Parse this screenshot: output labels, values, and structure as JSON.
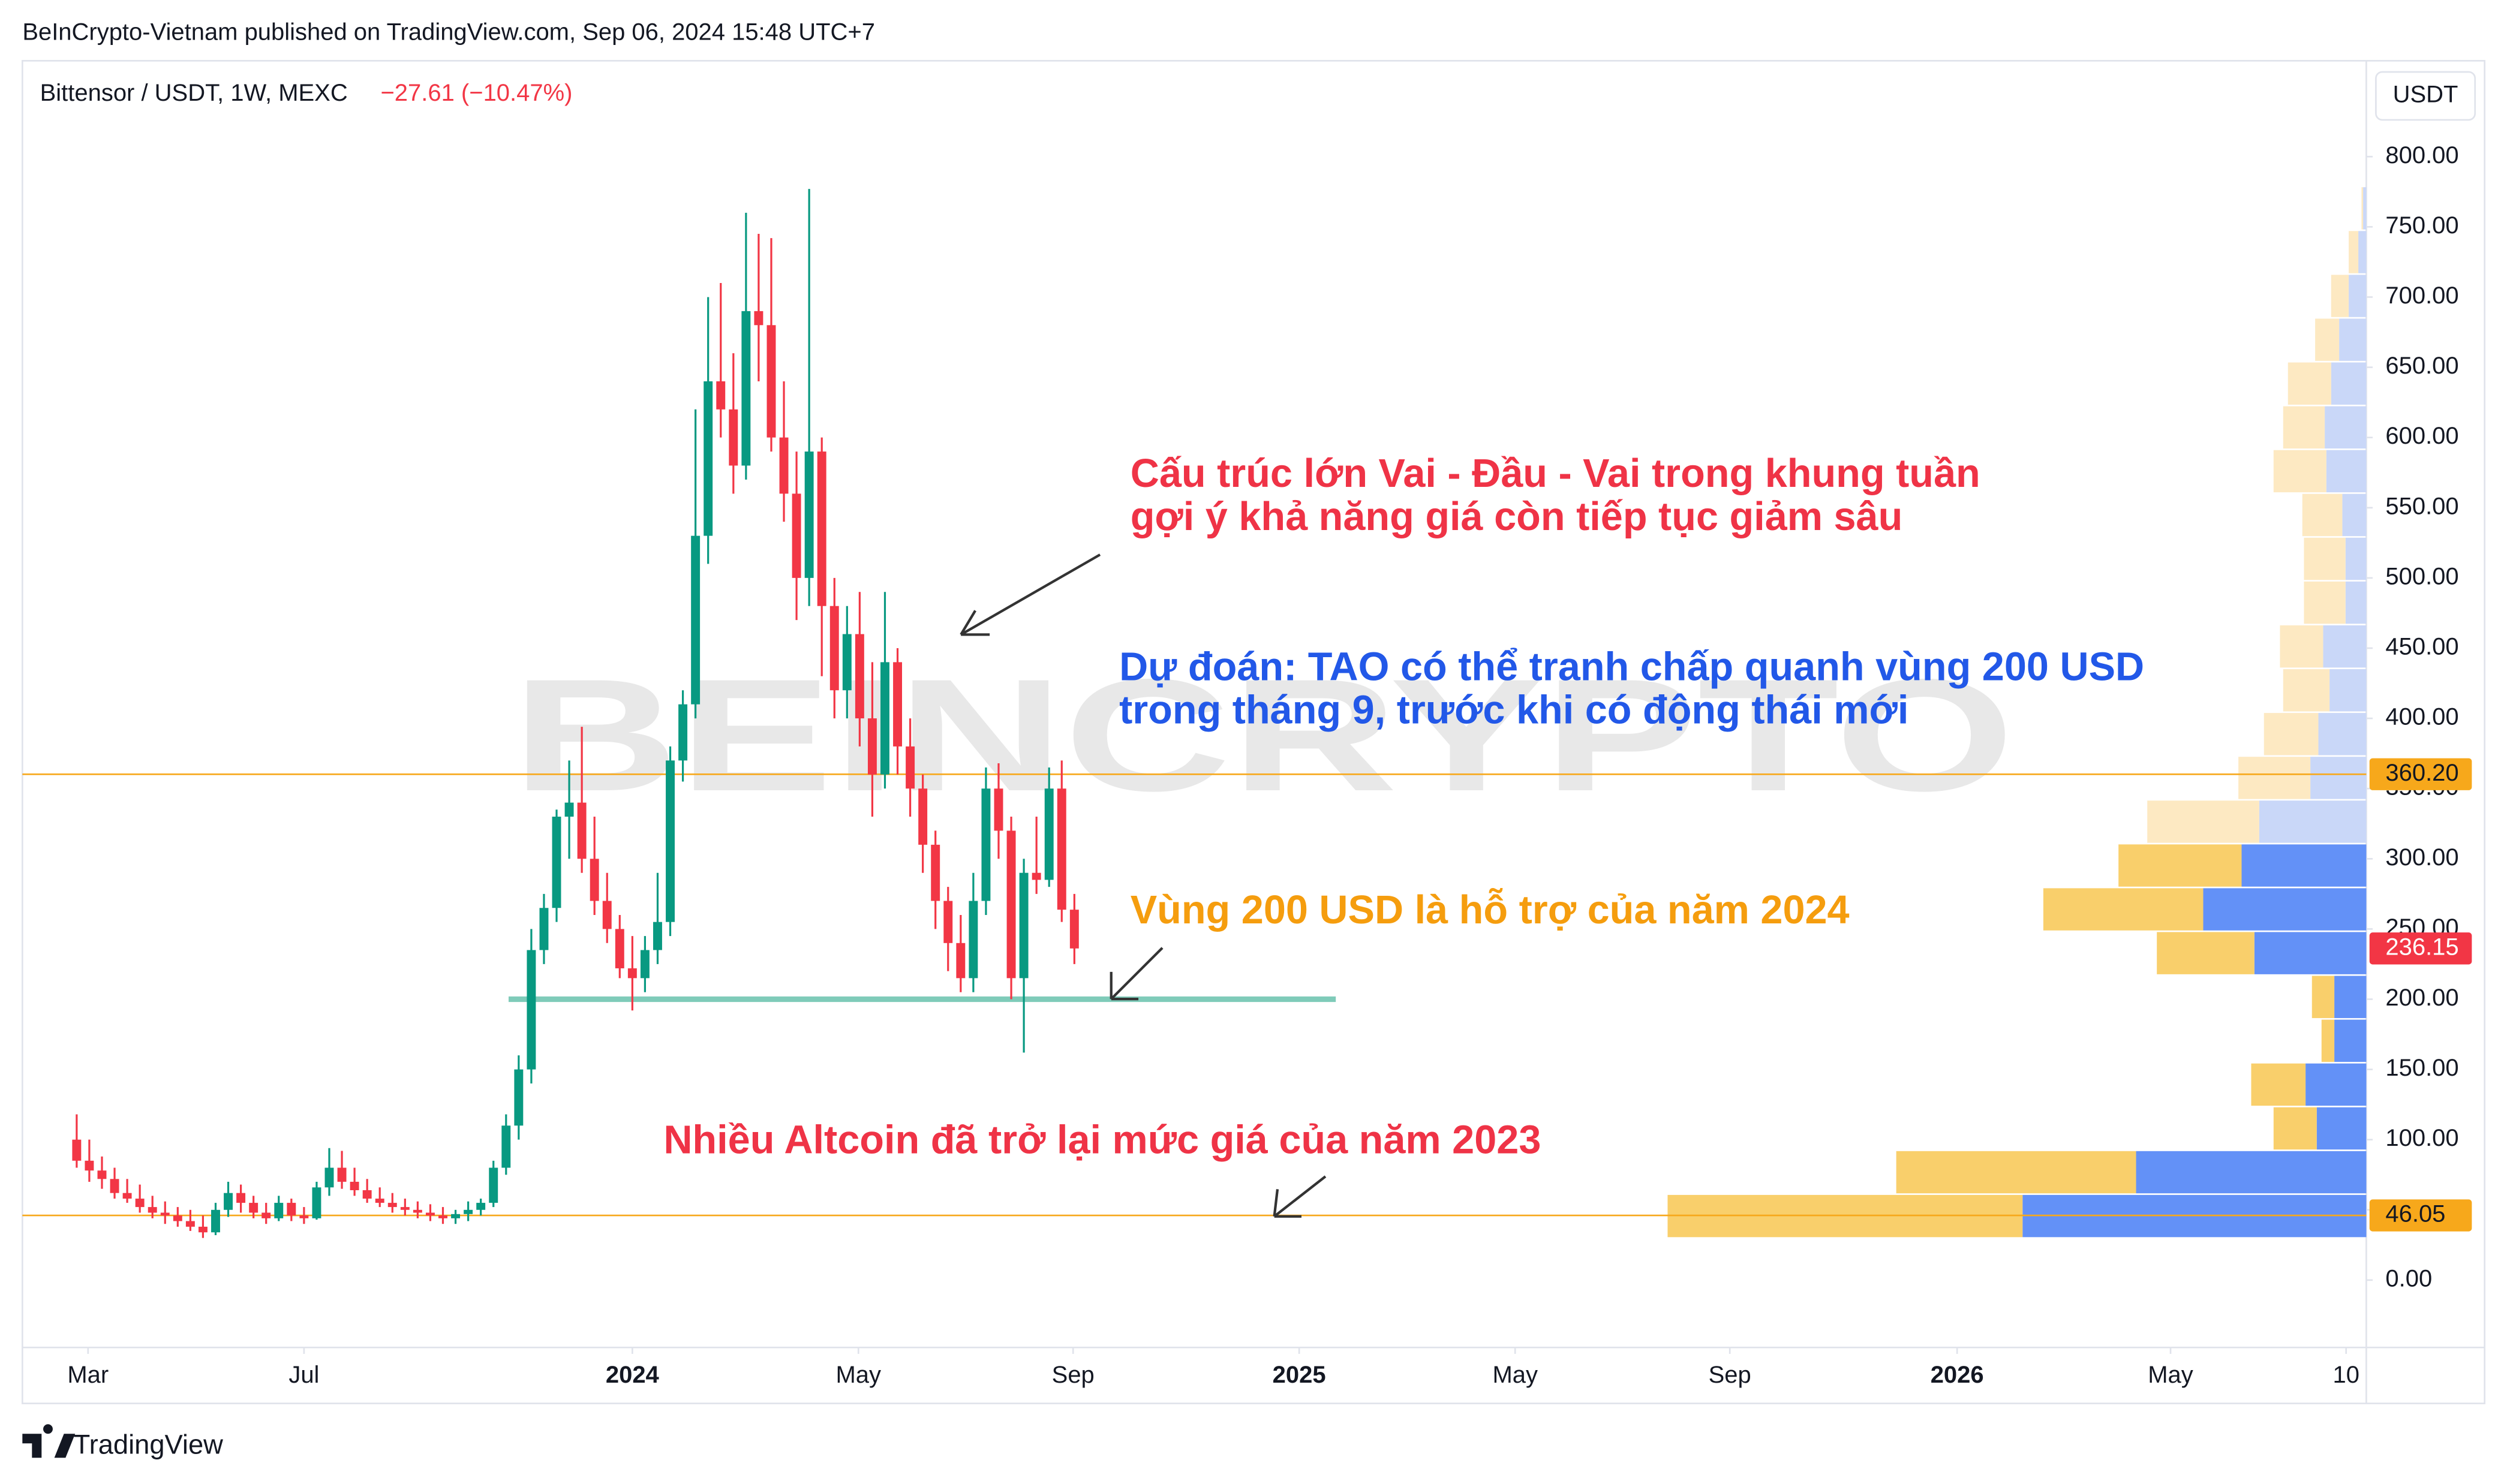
{
  "chart_data": {
    "type": "candlestick",
    "header": "BeInCrypto-Vietnam published on TradingView.com, Sep 06, 2024 15:48 UTC+7",
    "title": "Bittensor / USDT, 1W, MEXC",
    "change": "−27.61 (−10.47%)",
    "currency": "USDT",
    "watermark": "BEINCRYPTO",
    "footer": "TradingView",
    "up_color": "#089981",
    "down_color": "#f23645",
    "ohlc": [
      [
        100,
        118,
        80,
        85
      ],
      [
        85,
        100,
        70,
        78
      ],
      [
        78,
        88,
        65,
        72
      ],
      [
        72,
        80,
        58,
        62
      ],
      [
        62,
        72,
        55,
        58
      ],
      [
        58,
        68,
        48,
        52
      ],
      [
        52,
        60,
        44,
        48
      ],
      [
        48,
        56,
        40,
        46
      ],
      [
        46,
        52,
        38,
        42
      ],
      [
        42,
        50,
        35,
        38
      ],
      [
        38,
        46,
        30,
        34
      ],
      [
        34,
        55,
        32,
        50
      ],
      [
        50,
        70,
        45,
        62
      ],
      [
        62,
        68,
        48,
        55
      ],
      [
        55,
        60,
        44,
        48
      ],
      [
        48,
        55,
        40,
        44
      ],
      [
        44,
        60,
        42,
        55
      ],
      [
        55,
        58,
        42,
        46
      ],
      [
        46,
        52,
        40,
        44
      ],
      [
        44,
        70,
        43,
        66
      ],
      [
        66,
        94,
        60,
        80
      ],
      [
        80,
        92,
        65,
        70
      ],
      [
        70,
        80,
        60,
        64
      ],
      [
        64,
        72,
        55,
        58
      ],
      [
        58,
        66,
        52,
        55
      ],
      [
        55,
        62,
        48,
        52
      ],
      [
        52,
        58,
        46,
        50
      ],
      [
        50,
        56,
        44,
        48
      ],
      [
        48,
        54,
        42,
        46
      ],
      [
        46,
        52,
        40,
        44
      ],
      [
        44,
        50,
        40,
        47
      ],
      [
        47,
        56,
        42,
        50
      ],
      [
        50,
        58,
        46,
        55
      ],
      [
        55,
        85,
        52,
        80
      ],
      [
        80,
        118,
        75,
        110
      ],
      [
        110,
        160,
        100,
        150
      ],
      [
        150,
        250,
        140,
        235
      ],
      [
        235,
        275,
        225,
        265
      ],
      [
        265,
        335,
        255,
        330
      ],
      [
        330,
        370,
        300,
        340
      ],
      [
        340,
        394,
        290,
        300
      ],
      [
        300,
        330,
        260,
        270
      ],
      [
        270,
        290,
        240,
        250
      ],
      [
        250,
        260,
        215,
        222
      ],
      [
        222,
        245,
        192,
        215
      ],
      [
        215,
        245,
        205,
        235
      ],
      [
        235,
        290,
        225,
        255
      ],
      [
        255,
        380,
        245,
        370
      ],
      [
        370,
        420,
        355,
        410
      ],
      [
        410,
        620,
        400,
        530
      ],
      [
        530,
        700,
        510,
        640
      ],
      [
        640,
        710,
        600,
        620
      ],
      [
        620,
        660,
        560,
        580
      ],
      [
        580,
        760,
        570,
        690
      ],
      [
        690,
        745,
        640,
        680
      ],
      [
        680,
        742,
        590,
        600
      ],
      [
        600,
        640,
        540,
        560
      ],
      [
        560,
        590,
        470,
        500
      ],
      [
        500,
        777,
        480,
        590
      ],
      [
        590,
        600,
        430,
        480
      ],
      [
        480,
        500,
        400,
        420
      ],
      [
        420,
        480,
        400,
        460
      ],
      [
        460,
        490,
        380,
        400
      ],
      [
        400,
        440,
        330,
        360
      ],
      [
        360,
        490,
        350,
        440
      ],
      [
        440,
        450,
        360,
        380
      ],
      [
        380,
        400,
        330,
        350
      ],
      [
        350,
        360,
        290,
        310
      ],
      [
        310,
        320,
        250,
        270
      ],
      [
        270,
        280,
        220,
        240
      ],
      [
        240,
        260,
        205,
        215
      ],
      [
        215,
        290,
        205,
        270
      ],
      [
        270,
        365,
        260,
        350
      ],
      [
        350,
        368,
        300,
        320
      ],
      [
        320,
        330,
        200,
        215
      ],
      [
        215,
        300,
        162,
        290
      ],
      [
        290,
        330,
        275,
        285
      ],
      [
        285,
        365,
        280,
        350
      ],
      [
        350,
        370,
        255,
        263.76
      ],
      [
        263.76,
        275,
        225,
        236.15
      ]
    ],
    "xlim": [
      -4.3,
      181.3
    ],
    "xticks": [
      {
        "value": 0.9,
        "label": "Mar"
      },
      {
        "value": 18,
        "label": "Jul"
      },
      {
        "value": 44,
        "label": "2024"
      },
      {
        "value": 61.9,
        "label": "May"
      },
      {
        "value": 78.9,
        "label": "Sep"
      },
      {
        "value": 96.8,
        "label": "2025"
      },
      {
        "value": 113.9,
        "label": "May"
      },
      {
        "value": 130.9,
        "label": "Sep"
      },
      {
        "value": 148.9,
        "label": "2026"
      },
      {
        "value": 165.8,
        "label": "May"
      },
      {
        "value": 179.7,
        "label": "10"
      }
    ],
    "bold_xticks": [
      "2024",
      "2025",
      "2026"
    ],
    "ylim": [
      -48,
      866
    ],
    "yticks": [
      {
        "value": 0,
        "label": "0.00"
      },
      {
        "value": 50,
        "label": "50.00"
      },
      {
        "value": 100,
        "label": "100.00"
      },
      {
        "value": 150,
        "label": "150.00"
      },
      {
        "value": 200,
        "label": "200.00"
      },
      {
        "value": 250,
        "label": "250.00"
      },
      {
        "value": 300,
        "label": "300.00"
      },
      {
        "value": 350,
        "label": "350.00"
      },
      {
        "value": 400,
        "label": "400.00"
      },
      {
        "value": 450,
        "label": "450.00"
      },
      {
        "value": 500,
        "label": "500.00"
      },
      {
        "value": 550,
        "label": "550.00"
      },
      {
        "value": 600,
        "label": "600.00"
      },
      {
        "value": 650,
        "label": "650.00"
      },
      {
        "value": 700,
        "label": "700.00"
      },
      {
        "value": 750,
        "label": "750.00"
      },
      {
        "value": 800,
        "label": "800.00"
      }
    ],
    "price_lines": [
      {
        "value": 360.2,
        "label": "360.20",
        "color": "#f7a81b"
      },
      {
        "value": 46.05,
        "label": "46.05",
        "color": "#f7a81b"
      }
    ],
    "last_price": {
      "value": 236.15,
      "label": "236.15",
      "color": "#f23645"
    },
    "support": {
      "value": 200,
      "from": 34.2,
      "to": 99.7,
      "color": "#7fcbb9"
    },
    "volume_profile": {
      "row_size": 31.2,
      "value_area": [
        30,
        310.8
      ],
      "up_color": "#6391f7",
      "down_color": "#f9cf6b",
      "up_color_outside": "#c9d7f8",
      "down_color_outside": "#fde9c2",
      "rows": [
        {
          "low": 30,
          "up": 215,
          "down": 222
        },
        {
          "low": 61.2,
          "up": 144,
          "down": 150
        },
        {
          "low": 92.4,
          "up": 31,
          "down": 27
        },
        {
          "low": 123.6,
          "up": 38,
          "down": 34
        },
        {
          "low": 154.8,
          "up": 20,
          "down": 8
        },
        {
          "low": 186,
          "up": 20,
          "down": 14
        },
        {
          "low": 217.2,
          "up": 70,
          "down": 61
        },
        {
          "low": 248.4,
          "up": 102,
          "down": 100
        },
        {
          "low": 279.6,
          "up": 78,
          "down": 77
        },
        {
          "low": 310.8,
          "up": 67,
          "down": 70
        },
        {
          "low": 342,
          "up": 35,
          "down": 45
        },
        {
          "low": 373.2,
          "up": 30,
          "down": 34
        },
        {
          "low": 404.4,
          "up": 23,
          "down": 29
        },
        {
          "low": 435.6,
          "up": 27,
          "down": 27
        },
        {
          "low": 466.8,
          "up": 13,
          "down": 26
        },
        {
          "low": 498,
          "up": 13,
          "down": 26
        },
        {
          "low": 529.2,
          "up": 15,
          "down": 25
        },
        {
          "low": 560.4,
          "up": 25,
          "down": 33
        },
        {
          "low": 591.6,
          "up": 26,
          "down": 26
        },
        {
          "low": 622.8,
          "up": 22,
          "down": 27
        },
        {
          "low": 654,
          "up": 17,
          "down": 15
        },
        {
          "low": 685.2,
          "up": 11,
          "down": 11
        },
        {
          "low": 716.4,
          "up": 5,
          "down": 6
        },
        {
          "low": 747.6,
          "up": 2,
          "down": 1
        }
      ]
    },
    "annotations": [
      {
        "lines": [
          "Cấu trúc lớn Vai - Đầu - Vai trong khung tuần",
          "gợi ý khả năng giá còn tiếp tục giảm sâu"
        ],
        "color": "#ef3346"
      },
      {
        "lines": [
          "Dự đoán: TAO có thể tranh chấp quanh vùng 200 USD",
          "trong tháng 9, trước khi có động thái mới"
        ],
        "color": "#2258e8"
      },
      {
        "lines": [
          "Vùng 200 USD là hỗ trợ của năm 2024"
        ],
        "color": "#f59d0e"
      },
      {
        "lines": [
          "Nhiều Altcoin đã trở lại mức giá của năm 2023"
        ],
        "color": "#ef3346"
      }
    ]
  }
}
